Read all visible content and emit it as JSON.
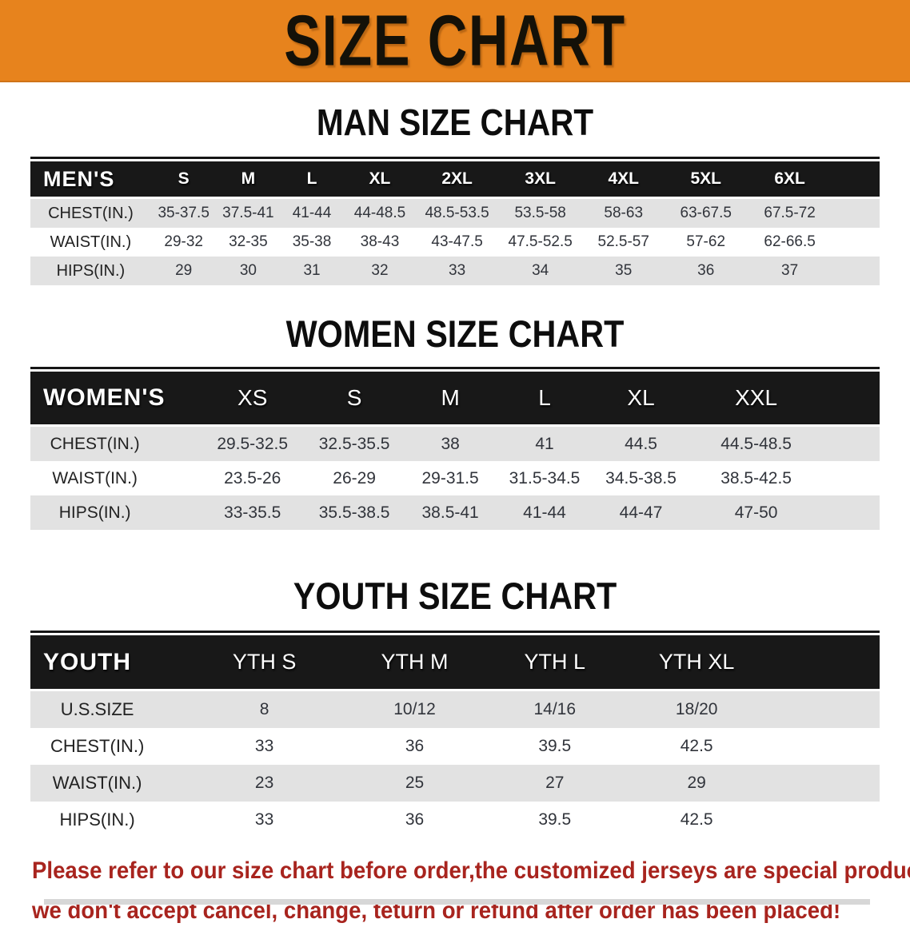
{
  "banner": {
    "title": "SIZE CHART",
    "bg_color": "#E7831D",
    "text_color": "#141108"
  },
  "sections": [
    {
      "heading": "MAN SIZE CHART",
      "label": "MEN'S",
      "columns": [
        "S",
        "M",
        "L",
        "XL",
        "2XL",
        "3XL",
        "4XL",
        "5XL",
        "6XL"
      ],
      "rows": [
        {
          "label": "CHEST(IN.)",
          "values": [
            "35-37.5",
            "37.5-41",
            "41-44",
            "44-48.5",
            "48.5-53.5",
            "53.5-58",
            "58-63",
            "63-67.5",
            "67.5-72"
          ]
        },
        {
          "label": "WAIST(IN.)",
          "values": [
            "29-32",
            "32-35",
            "35-38",
            "38-43",
            "43-47.5",
            "47.5-52.5",
            "52.5-57",
            "57-62",
            "62-66.5"
          ]
        },
        {
          "label": "HIPS(IN.)",
          "values": [
            "29",
            "30",
            "31",
            "32",
            "33",
            "34",
            "35",
            "36",
            "37"
          ]
        }
      ]
    },
    {
      "heading": "WOMEN SIZE CHART",
      "label": "WOMEN'S",
      "columns": [
        "XS",
        "S",
        "M",
        "L",
        "XL",
        "XXL"
      ],
      "rows": [
        {
          "label": "CHEST(IN.)",
          "values": [
            "29.5-32.5",
            "32.5-35.5",
            "38",
            "41",
            "44.5",
            "44.5-48.5"
          ]
        },
        {
          "label": "WAIST(IN.)",
          "values": [
            "23.5-26",
            "26-29",
            "29-31.5",
            "31.5-34.5",
            "34.5-38.5",
            "38.5-42.5"
          ]
        },
        {
          "label": "HIPS(IN.)",
          "values": [
            "33-35.5",
            "35.5-38.5",
            "38.5-41",
            "41-44",
            "44-47",
            "47-50"
          ]
        }
      ]
    },
    {
      "heading": "YOUTH SIZE CHART",
      "label": "YOUTH",
      "columns": [
        "YTH S",
        "YTH M",
        "YTH L",
        "YTH XL"
      ],
      "rows": [
        {
          "label": "U.S.SIZE",
          "values": [
            "8",
            "10/12",
            "14/16",
            "18/20"
          ]
        },
        {
          "label": "CHEST(IN.)",
          "values": [
            "33",
            "36",
            "39.5",
            "42.5"
          ]
        },
        {
          "label": "WAIST(IN.)",
          "values": [
            "23",
            "25",
            "27",
            "29"
          ]
        },
        {
          "label": "HIPS(IN.)",
          "values": [
            "33",
            "36",
            "39.5",
            "42.5"
          ]
        }
      ]
    }
  ],
  "footer": {
    "line1": "Please refer to our size chart before order,the customized jerseys are special products,",
    "line2": "we don't accept cancel, change, teturn or refund after order has been placed!",
    "text_color": "#A8241E"
  }
}
